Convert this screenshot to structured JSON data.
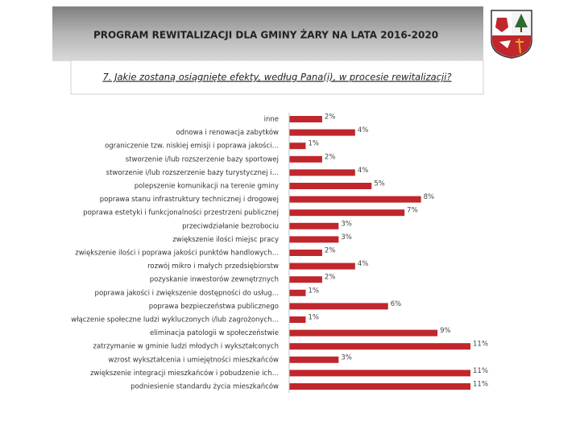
{
  "header": {
    "title": "PROGRAM REWITALIZACJI DLA GMINY ŻARY NA LATA 2016-2020"
  },
  "chart_data": {
    "type": "bar",
    "orientation": "horizontal",
    "title": "7. Jakie zostaną osiągnięte efekty, według Pana(i), w procesie rewitalizacji?",
    "color": "#c0262c",
    "categories": [
      "inne",
      "odnowa i renowacja zabytków",
      "ograniczenie tzw. niskiej emisji i poprawa jakości…",
      "stworzenie i/lub rozszerzenie bazy sportowej",
      "stworzenie i/lub rozszerzenie bazy turystycznej i…",
      "polepszenie komunikacji na terenie gminy",
      "poprawa stanu infrastruktury technicznej i drogowej",
      "poprawa estetyki i funkcjonalności przestrzeni publicznej",
      "przeciwdziałanie bezrobociu",
      "zwiększenie ilości miejsc pracy",
      "zwiększenie ilości i poprawa jakości punktów handlowych…",
      "rozwój mikro i małych przedsiębiorstw",
      "pozyskanie inwestorów zewnętrznych",
      "poprawa jakości i zwiększenie dostępności do usług…",
      "poprawa bezpieczeństwa publicznego",
      "włączenie społeczne ludzi wykluczonych i/lub zagrożonych…",
      "eliminacja patologii w społeczeństwie",
      "zatrzymanie w gminie ludzi młodych i wykształconych",
      "wzrost wykształcenia i umiejętności mieszkańców",
      "zwiększenie integracji mieszkańców i pobudzenie ich…",
      "podniesienie standardu życia mieszkańców"
    ],
    "values": [
      2,
      4,
      1,
      2,
      4,
      5,
      8,
      7,
      3,
      3,
      2,
      4,
      2,
      1,
      6,
      1,
      9,
      11,
      3,
      11,
      11
    ],
    "value_labels": [
      "2%",
      "4%",
      "1%",
      "2%",
      "4%",
      "5%",
      "8%",
      "7%",
      "3%",
      "3%",
      "2%",
      "4%",
      "2%",
      "1%",
      "6%",
      "1%",
      "9%",
      "11%",
      "3%",
      "11%",
      "11%"
    ]
  }
}
